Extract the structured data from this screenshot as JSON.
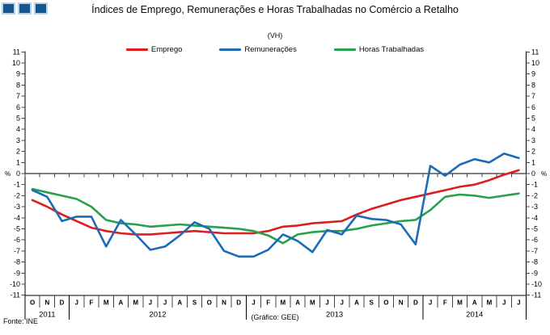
{
  "header": {
    "title": "Índices de Emprego, Remunerações e Horas Trabalhadas no Comércio a Retalho",
    "subtitle": "(VH)"
  },
  "footer": {
    "source": "Fonte: INE",
    "credit": "(Gráfico: GEE)"
  },
  "colors": {
    "emprego": "#dc1e1e",
    "remuneracoes": "#1d6bb5",
    "horas": "#27a14b",
    "axis": "#000000",
    "tick": "#444444",
    "logo_fill": "#15568f",
    "logo_border": "#b9d4e8"
  },
  "chart_data": {
    "type": "line",
    "title": "Índices de Emprego, Remunerações e Horas Trabalhadas no Comércio a Retalho",
    "subtitle": "(VH)",
    "xlabel": "",
    "ylabel": "%",
    "ylabel_left": "%",
    "ylabel_right": "%",
    "ylim": [
      -11,
      11
    ],
    "ytick_step": 1,
    "grid": false,
    "legend_position": "top",
    "categories": [
      "O",
      "N",
      "D",
      "J",
      "F",
      "M",
      "A",
      "M",
      "J",
      "J",
      "A",
      "S",
      "O",
      "N",
      "D",
      "J",
      "F",
      "M",
      "A",
      "M",
      "J",
      "J",
      "A",
      "S",
      "O",
      "N",
      "D",
      "J",
      "F",
      "M",
      "A",
      "M",
      "J",
      "J"
    ],
    "year_groups": [
      {
        "label": "2011",
        "count": 3
      },
      {
        "label": "2012",
        "count": 12
      },
      {
        "label": "2013",
        "count": 12
      },
      {
        "label": "2014",
        "count": 7
      }
    ],
    "series": [
      {
        "name": "Emprego",
        "color_key": "emprego",
        "values": [
          -2.4,
          -3.0,
          -3.7,
          -4.3,
          -4.9,
          -5.2,
          -5.4,
          -5.5,
          -5.5,
          -5.4,
          -5.3,
          -5.2,
          -5.3,
          -5.4,
          -5.4,
          -5.4,
          -5.2,
          -4.8,
          -4.7,
          -4.5,
          -4.4,
          -4.3,
          -3.7,
          -3.2,
          -2.8,
          -2.4,
          -2.1,
          -1.8,
          -1.5,
          -1.2,
          -1.0,
          -0.6,
          -0.1,
          0.3
        ]
      },
      {
        "name": "Remunerações",
        "color_key": "remuneracoes",
        "values": [
          -1.5,
          -2.1,
          -4.3,
          -3.9,
          -3.9,
          -6.6,
          -4.2,
          -5.5,
          -6.9,
          -6.6,
          -5.6,
          -4.4,
          -5.0,
          -7.0,
          -7.5,
          -7.5,
          -6.9,
          -5.5,
          -6.1,
          -7.1,
          -5.1,
          -5.5,
          -3.8,
          -4.1,
          -4.2,
          -4.6,
          -6.4,
          0.7,
          -0.2,
          0.8,
          1.3,
          1.0,
          1.8,
          1.4
        ]
      },
      {
        "name": "Horas Trabalhadas",
        "color_key": "horas",
        "values": [
          -1.4,
          -1.7,
          -2.0,
          -2.3,
          -3.0,
          -4.2,
          -4.5,
          -4.6,
          -4.8,
          -4.7,
          -4.6,
          -4.7,
          -4.8,
          -4.9,
          -5.0,
          -5.2,
          -5.6,
          -6.3,
          -5.5,
          -5.3,
          -5.2,
          -5.2,
          -5.0,
          -4.7,
          -4.5,
          -4.3,
          -4.2,
          -3.3,
          -2.1,
          -1.9,
          -2.0,
          -2.2,
          -2.0,
          -1.8
        ]
      }
    ]
  }
}
